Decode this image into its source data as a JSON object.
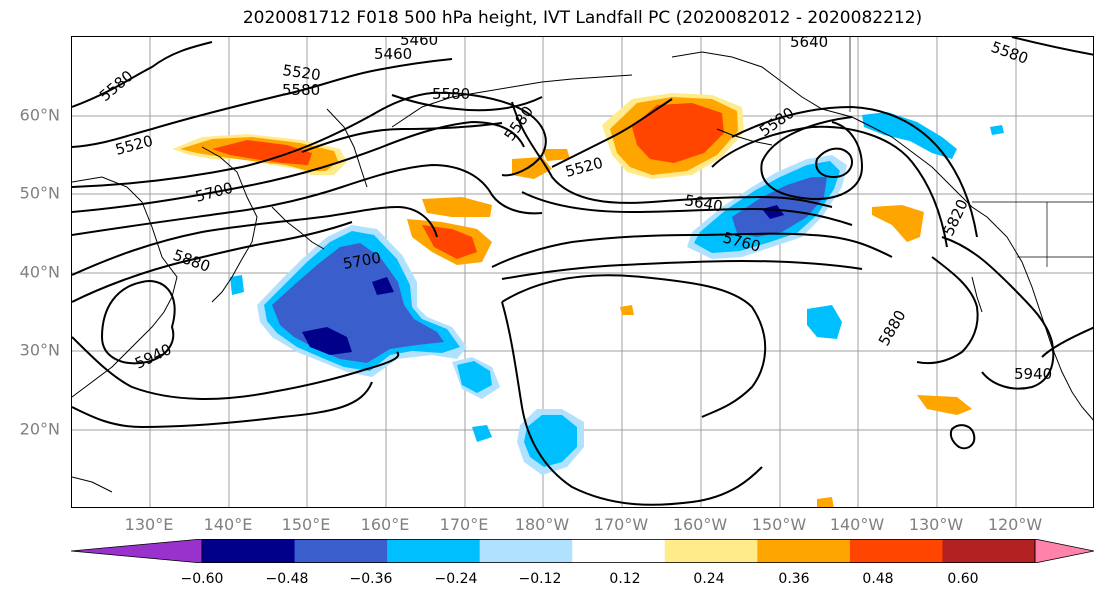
{
  "title": "2020081712 F018 500 hPa height, IVT Landfall PC (2020082012 - 2020082212)",
  "lat_labels": [
    "60°N",
    "50°N",
    "40°N",
    "30°N",
    "20°N"
  ],
  "lon_labels": [
    "130°E",
    "140°E",
    "150°E",
    "160°E",
    "170°E",
    "180°W",
    "170°W",
    "160°W",
    "150°W",
    "140°W",
    "130°W",
    "120°W"
  ],
  "contour_labels": [
    "5460",
    "5520",
    "5580",
    "5580",
    "5580",
    "5520",
    "5700",
    "5880",
    "5940",
    "5700",
    "5580",
    "5520",
    "5640",
    "5760",
    "5580",
    "5880",
    "5940",
    "5820",
    "5640",
    "5460",
    "5580"
  ],
  "colorbar": {
    "ticks": [
      "−0.60",
      "−0.48",
      "−0.36",
      "−0.24",
      "−0.12",
      "0.12",
      "0.24",
      "0.36",
      "0.48",
      "0.60"
    ],
    "colors": [
      "#9932cc",
      "#00008b",
      "#3a5fcd",
      "#00bfff",
      "#b0e2ff",
      "#ffffff",
      "#ffeb8a",
      "#ffa500",
      "#ff4500",
      "#b22222",
      "#ff82ab"
    ]
  },
  "colors": {
    "axis_label": "#808080",
    "grid": "#a0a0a0",
    "contour": "#000000"
  }
}
